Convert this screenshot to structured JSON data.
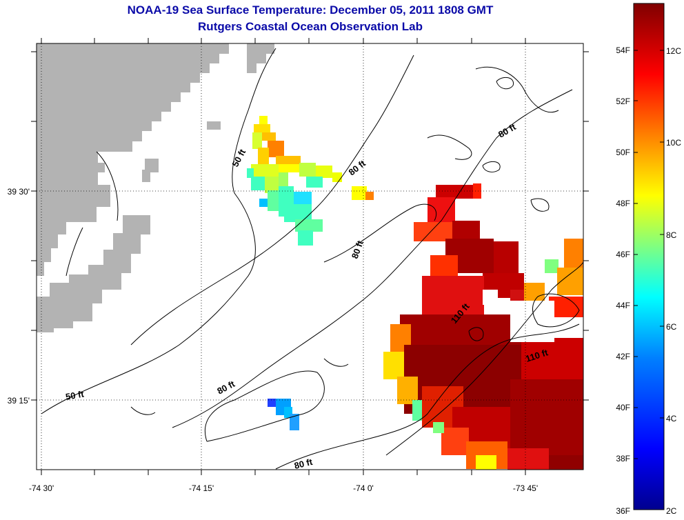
{
  "header": {
    "title": "NOAA-19 Sea Surface Temperature:  December 05, 2011 1808 GMT",
    "subtitle": "Rutgers Coastal Ocean Observation Lab"
  },
  "axes": {
    "x_ticks": [
      "-74 30'",
      "-74 15'",
      "-74 0'",
      "-73 45'"
    ],
    "y_ticks": [
      "39 30'",
      "39 15'"
    ]
  },
  "contour_labels": [
    "50 ft",
    "80 ft",
    "80 ft",
    "80 ft",
    "110 ft",
    "110 ft",
    "50 ft",
    "80 ft",
    "80 ft"
  ],
  "colorbar": {
    "fahrenheit_labels": [
      "54F",
      "52F",
      "50F",
      "48F",
      "46F",
      "44F",
      "42F",
      "40F",
      "38F",
      "36F"
    ],
    "celsius_labels": [
      "12C",
      "10C",
      "8C",
      "6C",
      "4C",
      "2C"
    ],
    "colors": [
      "#00008f",
      "#0000ff",
      "#0080ff",
      "#00ffff",
      "#80ff80",
      "#ffff00",
      "#ff8000",
      "#ff0000",
      "#800000"
    ]
  },
  "colors": {
    "land": "#b3b3b3",
    "title": "#0a0aa8"
  }
}
